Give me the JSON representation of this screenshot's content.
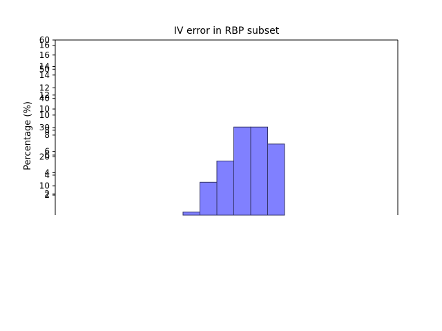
{
  "chart_data": {
    "type": "bar",
    "title": "IV error in RBP subset",
    "xlabel": "",
    "ylabel": "Percentage (%)",
    "grid": false,
    "ylim": [
      0,
      60
    ],
    "yticks": [
      10,
      20,
      30,
      40,
      50,
      60
    ],
    "overlapping_ytick_sets": [
      {
        "ticks": [
          2,
          4,
          6,
          8,
          10,
          12,
          14,
          16
        ],
        "ylim": [
          0,
          16.5
        ]
      },
      {
        "ticks": [
          2,
          4,
          6,
          8,
          10,
          12,
          14,
          16
        ],
        "ylim": [
          0,
          17.5
        ]
      }
    ],
    "bins": [
      {
        "value": 0.3
      },
      {
        "value": 3.1
      },
      {
        "value": 5.1
      },
      {
        "value": 8.3
      },
      {
        "value": 8.3
      },
      {
        "value": 6.7
      }
    ],
    "colors": {
      "fill": "#8080ff",
      "edge": "#333366",
      "axis": "#000000"
    }
  }
}
